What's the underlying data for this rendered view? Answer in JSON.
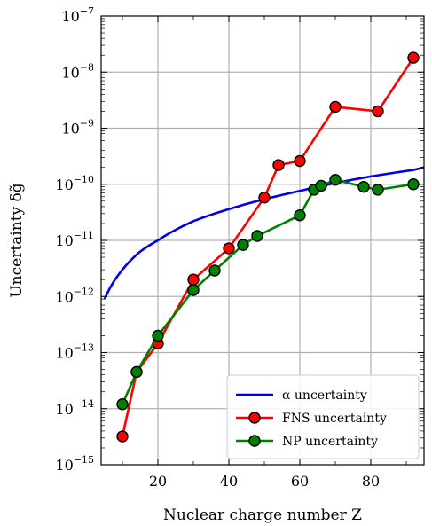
{
  "chart_data": {
    "type": "line",
    "xlabel": "Nuclear charge number Z",
    "ylabel": "Uncertainty δg̃",
    "xlim": [
      4,
      95
    ],
    "ylim_log10": [
      -15,
      -7
    ],
    "yscale": "log",
    "grid": true,
    "legend_position": "lower-right",
    "x_ticks": [
      20,
      40,
      60,
      80
    ],
    "x_tick_labels": [
      "20",
      "40",
      "60",
      "80"
    ],
    "y_ticks_exp": [
      -15,
      -14,
      -13,
      -12,
      -11,
      -10,
      -9,
      -8,
      -7
    ],
    "y_tick_labels": [
      {
        "base": "10",
        "exp": "−15"
      },
      {
        "base": "10",
        "exp": "−14"
      },
      {
        "base": "10",
        "exp": "−13"
      },
      {
        "base": "10",
        "exp": "−12"
      },
      {
        "base": "10",
        "exp": "−11"
      },
      {
        "base": "10",
        "exp": "−10"
      },
      {
        "base": "10",
        "exp": "−9"
      },
      {
        "base": "10",
        "exp": "−8"
      },
      {
        "base": "10",
        "exp": "−7"
      }
    ],
    "series": [
      {
        "name": "α uncertainty",
        "color": "#0000ee",
        "markers": false,
        "x": [
          5,
          10,
          15,
          20,
          30,
          40,
          50,
          60,
          70,
          80,
          92,
          95
        ],
        "y": [
          9e-13,
          3e-12,
          6.3e-12,
          1e-11,
          2.2e-11,
          3.6e-11,
          5.4e-11,
          7.6e-11,
          1.05e-10,
          1.38e-10,
          1.8e-10,
          2e-10
        ]
      },
      {
        "name": "FNS uncertainty",
        "color": "#ff0000",
        "markers": true,
        "x": [
          10,
          14,
          20,
          30,
          40,
          50,
          54,
          60,
          70,
          82,
          92
        ],
        "y": [
          3.2e-15,
          4.5e-14,
          1.45e-13,
          2e-12,
          7.2e-12,
          5.8e-11,
          2.2e-10,
          2.6e-10,
          2.4e-09,
          2e-09,
          1.8e-08
        ]
      },
      {
        "name": "NP uncertainty",
        "color": "#008000",
        "markers": true,
        "x": [
          10,
          14,
          20,
          30,
          36,
          44,
          48,
          60,
          64,
          66,
          70,
          78,
          82,
          92
        ],
        "y": [
          1.2e-14,
          4.5e-14,
          2e-13,
          1.3e-12,
          2.9e-12,
          8.3e-12,
          1.2e-11,
          2.8e-11,
          8e-11,
          9.4e-11,
          1.2e-10,
          9e-11,
          8e-11,
          1e-10
        ]
      }
    ]
  }
}
